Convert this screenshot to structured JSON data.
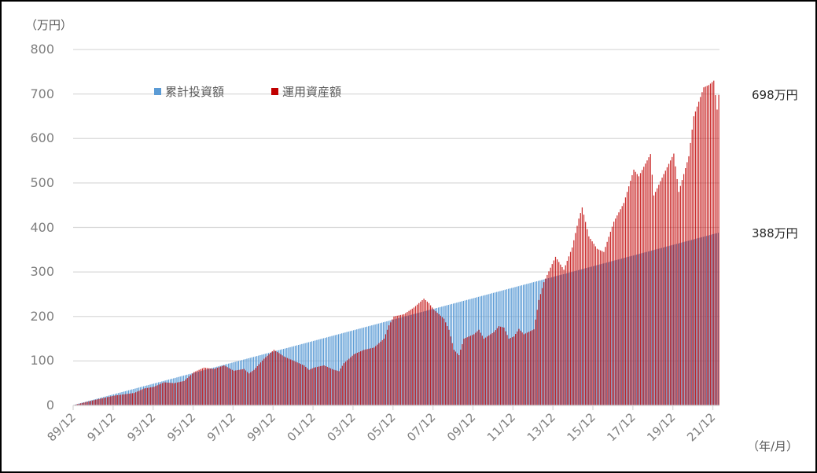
{
  "chart_data": {
    "type": "bar",
    "ylabel": "（万円）",
    "xlabel": "（年/月）",
    "ylim": [
      0,
      800
    ],
    "yticks": [
      "0",
      "100",
      "200",
      "300",
      "400",
      "500",
      "600",
      "700",
      "800"
    ],
    "xticks": [
      "89/12",
      "91/12",
      "93/12",
      "95/12",
      "97/12",
      "99/12",
      "01/12",
      "03/12",
      "05/12",
      "07/12",
      "09/12",
      "11/12",
      "13/12",
      "15/12",
      "17/12",
      "19/12",
      "21/12"
    ],
    "x_range": [
      "89/12",
      "22/03"
    ],
    "grid": true,
    "legend_position": "top-left",
    "colors": {
      "investment": "#5b9bd5",
      "assets": "#c00000",
      "grid": "#d9d9d9"
    },
    "series": [
      {
        "name": "累計投資額",
        "frequency": "monthly",
        "points": [
          [
            "89/12",
            1
          ],
          [
            "22/03",
            388
          ]
        ]
      },
      {
        "name": "運用資産額",
        "frequency": "monthly",
        "points": [
          [
            "89/12",
            1
          ],
          [
            "90/12",
            12
          ],
          [
            "91/12",
            22
          ],
          [
            "92/12",
            28
          ],
          [
            "93/06",
            38
          ],
          [
            "93/12",
            42
          ],
          [
            "94/06",
            52
          ],
          [
            "94/12",
            50
          ],
          [
            "95/06",
            55
          ],
          [
            "95/12",
            75
          ],
          [
            "96/06",
            85
          ],
          [
            "96/12",
            82
          ],
          [
            "97/06",
            90
          ],
          [
            "97/12",
            78
          ],
          [
            "98/06",
            82
          ],
          [
            "98/09",
            72
          ],
          [
            "98/12",
            80
          ],
          [
            "99/06",
            105
          ],
          [
            "99/12",
            125
          ],
          [
            "00/06",
            110
          ],
          [
            "00/12",
            100
          ],
          [
            "01/06",
            90
          ],
          [
            "01/09",
            80
          ],
          [
            "01/12",
            85
          ],
          [
            "02/06",
            90
          ],
          [
            "02/12",
            80
          ],
          [
            "03/03",
            77
          ],
          [
            "03/06",
            95
          ],
          [
            "03/12",
            115
          ],
          [
            "04/06",
            125
          ],
          [
            "04/12",
            130
          ],
          [
            "05/06",
            150
          ],
          [
            "05/09",
            180
          ],
          [
            "05/12",
            200
          ],
          [
            "06/06",
            205
          ],
          [
            "06/12",
            220
          ],
          [
            "07/06",
            240
          ],
          [
            "07/09",
            230
          ],
          [
            "07/12",
            215
          ],
          [
            "08/06",
            195
          ],
          [
            "08/09",
            170
          ],
          [
            "08/12",
            125
          ],
          [
            "09/03",
            113
          ],
          [
            "09/06",
            150
          ],
          [
            "09/12",
            160
          ],
          [
            "10/03",
            170
          ],
          [
            "10/06",
            150
          ],
          [
            "10/12",
            165
          ],
          [
            "11/03",
            178
          ],
          [
            "11/06",
            175
          ],
          [
            "11/09",
            150
          ],
          [
            "11/12",
            155
          ],
          [
            "12/03",
            172
          ],
          [
            "12/06",
            160
          ],
          [
            "12/12",
            171
          ],
          [
            "13/03",
            237
          ],
          [
            "13/06",
            277
          ],
          [
            "14/01",
            334
          ],
          [
            "14/06",
            305
          ],
          [
            "14/11",
            355
          ],
          [
            "15/03",
            420
          ],
          [
            "15/05",
            445
          ],
          [
            "15/09",
            380
          ],
          [
            "16/02",
            352
          ],
          [
            "16/06",
            345
          ],
          [
            "16/12",
            413
          ],
          [
            "17/06",
            455
          ],
          [
            "17/12",
            530
          ],
          [
            "18/03",
            515
          ],
          [
            "18/10",
            565
          ],
          [
            "18/12",
            472
          ],
          [
            "19/06",
            520
          ],
          [
            "19/12",
            566
          ],
          [
            "20/03",
            480
          ],
          [
            "20/09",
            560
          ],
          [
            "20/12",
            650
          ],
          [
            "21/06",
            715
          ],
          [
            "21/09",
            720
          ],
          [
            "21/12",
            730
          ],
          [
            "22/02",
            665
          ],
          [
            "22/03",
            698
          ]
        ]
      }
    ],
    "annotations": [
      "698万円",
      "388万円"
    ]
  }
}
